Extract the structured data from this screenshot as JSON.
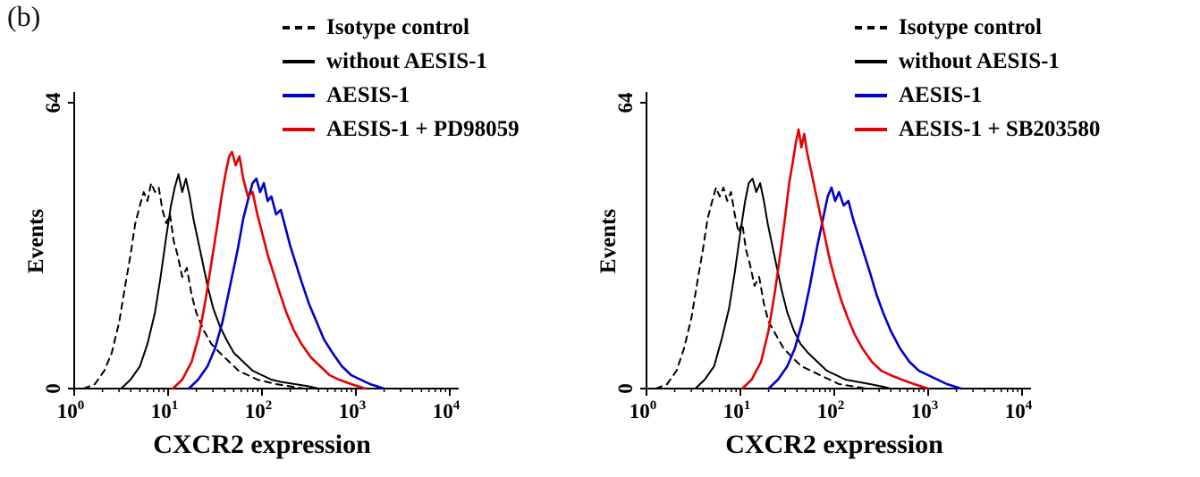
{
  "figure": {
    "panel_label": "(b)"
  },
  "colors": {
    "black": "#000000",
    "blue": "#0000cc",
    "red": "#e50000",
    "axis": "#000000"
  },
  "chart_data": [
    {
      "type": "line",
      "panel": "left",
      "title": "",
      "xlabel": "CXCR2 expression",
      "ylabel": "Events",
      "x_scale": "log10",
      "xlim_exponents": [
        0,
        4
      ],
      "x_decades": [
        0,
        1,
        2,
        3,
        4
      ],
      "ylim": [
        0,
        66
      ],
      "y_ticks": [
        {
          "value": 0,
          "label": "0"
        },
        {
          "value": 64,
          "label": "64"
        }
      ],
      "grid": false,
      "legend_position": "top",
      "series": [
        {
          "name": "Isotype control",
          "color": "#000000",
          "dash": true,
          "width": 2,
          "points": [
            [
              0.1,
              0
            ],
            [
              0.22,
              1
            ],
            [
              0.32,
              4
            ],
            [
              0.4,
              8
            ],
            [
              0.48,
              15
            ],
            [
              0.55,
              24
            ],
            [
              0.6,
              30
            ],
            [
              0.65,
              37
            ],
            [
              0.7,
              41
            ],
            [
              0.74,
              44
            ],
            [
              0.78,
              42
            ],
            [
              0.82,
              46
            ],
            [
              0.86,
              44
            ],
            [
              0.9,
              45
            ],
            [
              0.94,
              40
            ],
            [
              0.98,
              37
            ],
            [
              1.02,
              39
            ],
            [
              1.06,
              33
            ],
            [
              1.1,
              30
            ],
            [
              1.15,
              25
            ],
            [
              1.2,
              27
            ],
            [
              1.25,
              21
            ],
            [
              1.3,
              17
            ],
            [
              1.38,
              13
            ],
            [
              1.46,
              10
            ],
            [
              1.55,
              8
            ],
            [
              1.65,
              6
            ],
            [
              1.75,
              4
            ],
            [
              1.85,
              3
            ],
            [
              1.95,
              2
            ],
            [
              2.05,
              1.5
            ],
            [
              2.15,
              1
            ],
            [
              2.3,
              0.5
            ],
            [
              2.45,
              0
            ]
          ]
        },
        {
          "name": "without AESIS-1",
          "color": "#000000",
          "dash": false,
          "width": 2,
          "points": [
            [
              0.5,
              0
            ],
            [
              0.6,
              2
            ],
            [
              0.7,
              5
            ],
            [
              0.78,
              10
            ],
            [
              0.86,
              17
            ],
            [
              0.92,
              25
            ],
            [
              0.98,
              34
            ],
            [
              1.03,
              41
            ],
            [
              1.07,
              45
            ],
            [
              1.11,
              48
            ],
            [
              1.15,
              44
            ],
            [
              1.19,
              47
            ],
            [
              1.23,
              43
            ],
            [
              1.27,
              38
            ],
            [
              1.32,
              33
            ],
            [
              1.37,
              28
            ],
            [
              1.42,
              23
            ],
            [
              1.48,
              18
            ],
            [
              1.55,
              14
            ],
            [
              1.62,
              11
            ],
            [
              1.7,
              8
            ],
            [
              1.8,
              6
            ],
            [
              1.9,
              4
            ],
            [
              2.0,
              3
            ],
            [
              2.1,
              2
            ],
            [
              2.2,
              1.5
            ],
            [
              2.35,
              1
            ],
            [
              2.5,
              0.5
            ],
            [
              2.6,
              0
            ]
          ]
        },
        {
          "name": "AESIS-1",
          "color": "#0000cc",
          "dash": false,
          "width": 2.6,
          "points": [
            [
              1.22,
              0
            ],
            [
              1.32,
              2
            ],
            [
              1.42,
              5
            ],
            [
              1.5,
              9
            ],
            [
              1.58,
              15
            ],
            [
              1.66,
              23
            ],
            [
              1.74,
              31
            ],
            [
              1.8,
              38
            ],
            [
              1.86,
              43
            ],
            [
              1.9,
              46
            ],
            [
              1.94,
              47
            ],
            [
              1.98,
              44
            ],
            [
              2.02,
              46
            ],
            [
              2.06,
              42
            ],
            [
              2.1,
              43
            ],
            [
              2.15,
              39
            ],
            [
              2.2,
              40
            ],
            [
              2.25,
              36
            ],
            [
              2.3,
              32
            ],
            [
              2.36,
              28
            ],
            [
              2.42,
              24
            ],
            [
              2.5,
              19
            ],
            [
              2.58,
              15
            ],
            [
              2.66,
              11
            ],
            [
              2.75,
              8
            ],
            [
              2.85,
              5
            ],
            [
              2.95,
              3
            ],
            [
              3.05,
              2
            ],
            [
              3.15,
              1
            ],
            [
              3.3,
              0
            ]
          ]
        },
        {
          "name": "AESIS-1 + PD98059",
          "color": "#e50000",
          "dash": false,
          "width": 2.6,
          "points": [
            [
              1.05,
              0
            ],
            [
              1.15,
              2
            ],
            [
              1.25,
              6
            ],
            [
              1.33,
              12
            ],
            [
              1.4,
              20
            ],
            [
              1.46,
              28
            ],
            [
              1.52,
              36
            ],
            [
              1.57,
              43
            ],
            [
              1.61,
              48
            ],
            [
              1.65,
              52
            ],
            [
              1.68,
              53
            ],
            [
              1.72,
              50
            ],
            [
              1.76,
              52
            ],
            [
              1.8,
              47
            ],
            [
              1.85,
              43
            ],
            [
              1.9,
              44
            ],
            [
              1.95,
              39
            ],
            [
              2.0,
              35
            ],
            [
              2.06,
              30
            ],
            [
              2.12,
              26
            ],
            [
              2.18,
              22
            ],
            [
              2.26,
              17
            ],
            [
              2.34,
              13
            ],
            [
              2.42,
              10
            ],
            [
              2.52,
              7
            ],
            [
              2.62,
              5
            ],
            [
              2.72,
              3
            ],
            [
              2.82,
              2
            ],
            [
              2.95,
              1
            ],
            [
              3.1,
              0
            ]
          ]
        }
      ]
    },
    {
      "type": "line",
      "panel": "right",
      "title": "",
      "xlabel": "CXCR2 expression",
      "ylabel": "Events",
      "x_scale": "log10",
      "xlim_exponents": [
        0,
        4
      ],
      "x_decades": [
        0,
        1,
        2,
        3,
        4
      ],
      "ylim": [
        0,
        66
      ],
      "y_ticks": [
        {
          "value": 0,
          "label": "0"
        },
        {
          "value": 64,
          "label": "64"
        }
      ],
      "grid": false,
      "legend_position": "top",
      "series": [
        {
          "name": "Isotype control",
          "color": "#000000",
          "dash": true,
          "width": 2,
          "points": [
            [
              0.1,
              0
            ],
            [
              0.22,
              1
            ],
            [
              0.32,
              4
            ],
            [
              0.4,
              9
            ],
            [
              0.48,
              16
            ],
            [
              0.55,
              25
            ],
            [
              0.6,
              31
            ],
            [
              0.65,
              38
            ],
            [
              0.7,
              42
            ],
            [
              0.74,
              45
            ],
            [
              0.78,
              43
            ],
            [
              0.82,
              45
            ],
            [
              0.86,
              42
            ],
            [
              0.9,
              44
            ],
            [
              0.94,
              39
            ],
            [
              0.98,
              35
            ],
            [
              1.02,
              37
            ],
            [
              1.06,
              31
            ],
            [
              1.1,
              28
            ],
            [
              1.15,
              23
            ],
            [
              1.2,
              25
            ],
            [
              1.25,
              19
            ],
            [
              1.3,
              15
            ],
            [
              1.38,
              12
            ],
            [
              1.46,
              9
            ],
            [
              1.55,
              7
            ],
            [
              1.65,
              5
            ],
            [
              1.75,
              4
            ],
            [
              1.85,
              3
            ],
            [
              1.95,
              2
            ],
            [
              2.05,
              1
            ],
            [
              2.2,
              0.5
            ],
            [
              2.35,
              0
            ]
          ]
        },
        {
          "name": "without AESIS-1",
          "color": "#000000",
          "dash": false,
          "width": 2,
          "points": [
            [
              0.52,
              0
            ],
            [
              0.62,
              2
            ],
            [
              0.72,
              5
            ],
            [
              0.8,
              11
            ],
            [
              0.88,
              18
            ],
            [
              0.94,
              26
            ],
            [
              1.0,
              35
            ],
            [
              1.05,
              42
            ],
            [
              1.09,
              46
            ],
            [
              1.13,
              47
            ],
            [
              1.17,
              44
            ],
            [
              1.21,
              46
            ],
            [
              1.25,
              42
            ],
            [
              1.29,
              37
            ],
            [
              1.34,
              32
            ],
            [
              1.39,
              27
            ],
            [
              1.44,
              22
            ],
            [
              1.5,
              17
            ],
            [
              1.57,
              13
            ],
            [
              1.64,
              10
            ],
            [
              1.72,
              8
            ],
            [
              1.82,
              6
            ],
            [
              1.92,
              4
            ],
            [
              2.02,
              3
            ],
            [
              2.12,
              2
            ],
            [
              2.25,
              1.5
            ],
            [
              2.38,
              1
            ],
            [
              2.5,
              0.5
            ],
            [
              2.6,
              0
            ]
          ]
        },
        {
          "name": "AESIS-1",
          "color": "#0000cc",
          "dash": false,
          "width": 2.6,
          "points": [
            [
              1.3,
              0
            ],
            [
              1.4,
              2
            ],
            [
              1.5,
              5
            ],
            [
              1.58,
              9
            ],
            [
              1.66,
              15
            ],
            [
              1.74,
              23
            ],
            [
              1.82,
              32
            ],
            [
              1.88,
              38
            ],
            [
              1.93,
              43
            ],
            [
              1.97,
              45
            ],
            [
              2.01,
              42
            ],
            [
              2.05,
              44
            ],
            [
              2.1,
              41
            ],
            [
              2.15,
              42
            ],
            [
              2.2,
              38
            ],
            [
              2.26,
              34
            ],
            [
              2.32,
              30
            ],
            [
              2.38,
              26
            ],
            [
              2.45,
              21
            ],
            [
              2.52,
              17
            ],
            [
              2.6,
              13
            ],
            [
              2.7,
              9
            ],
            [
              2.8,
              6
            ],
            [
              2.9,
              4
            ],
            [
              3.0,
              3
            ],
            [
              3.1,
              2
            ],
            [
              3.2,
              1
            ],
            [
              3.35,
              0
            ]
          ]
        },
        {
          "name": "AESIS-1 + SB203580",
          "color": "#e50000",
          "dash": false,
          "width": 2.6,
          "points": [
            [
              1.02,
              0
            ],
            [
              1.12,
              2
            ],
            [
              1.22,
              6
            ],
            [
              1.3,
              13
            ],
            [
              1.37,
              22
            ],
            [
              1.43,
              31
            ],
            [
              1.48,
              39
            ],
            [
              1.52,
              46
            ],
            [
              1.56,
              51
            ],
            [
              1.59,
              55
            ],
            [
              1.62,
              58
            ],
            [
              1.65,
              54
            ],
            [
              1.68,
              57
            ],
            [
              1.71,
              53
            ],
            [
              1.75,
              49
            ],
            [
              1.8,
              44
            ],
            [
              1.85,
              39
            ],
            [
              1.9,
              34
            ],
            [
              1.95,
              29
            ],
            [
              2.0,
              25
            ],
            [
              2.07,
              20
            ],
            [
              2.14,
              16
            ],
            [
              2.22,
              12
            ],
            [
              2.3,
              9
            ],
            [
              2.4,
              6
            ],
            [
              2.5,
              4
            ],
            [
              2.6,
              3
            ],
            [
              2.72,
              2
            ],
            [
              2.85,
              1
            ],
            [
              3.0,
              0
            ]
          ]
        }
      ]
    }
  ]
}
